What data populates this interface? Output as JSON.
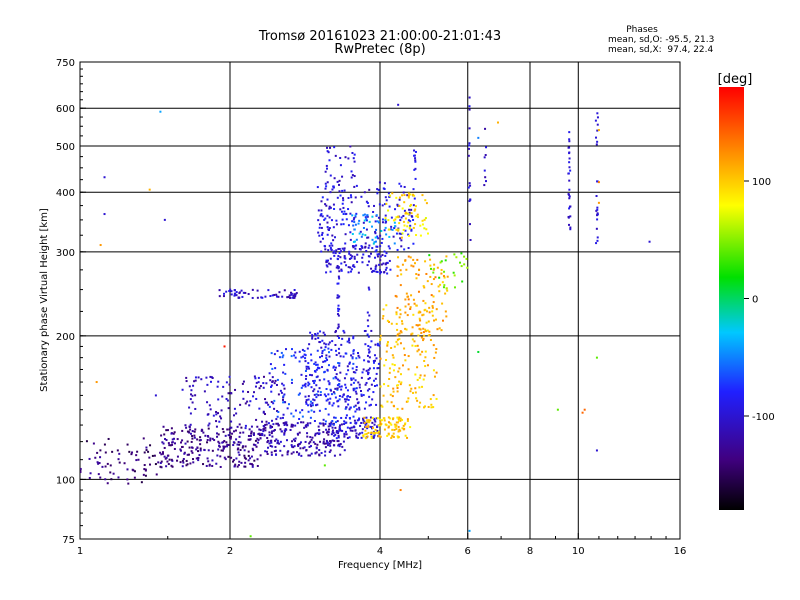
{
  "chart_data": {
    "type": "scatter",
    "title": "Tromsø 20161023 21:00:00-21:01:43",
    "subtitle": "RwPretec (8p)",
    "xlabel": "Frequency [MHz]",
    "ylabel": "Stationary phase Virtual Height [km]",
    "x_scale": "log",
    "y_scale": "log",
    "xlim": [
      1,
      16
    ],
    "ylim": [
      75,
      750
    ],
    "x_ticks": [
      1,
      2,
      4,
      6,
      8,
      10,
      16
    ],
    "x_tick_labels": [
      "1",
      "2",
      "4",
      "6",
      "8",
      "10",
      "16"
    ],
    "x_grid": [
      2,
      4,
      6,
      8,
      10
    ],
    "y_ticks": [
      75,
      100,
      200,
      300,
      400,
      500,
      600,
      750
    ],
    "y_tick_labels": [
      "75",
      "100",
      "200",
      "300",
      "400",
      "500",
      "600",
      "750"
    ],
    "y_grid": [
      100,
      200,
      300,
      400,
      500,
      600
    ],
    "grid": true,
    "phases_box": {
      "title": "Phases",
      "line1": "mean, sd,O: -95.5, 21.3",
      "line2": "mean, sd,X:  97.4, 22.4"
    },
    "colorbar": {
      "label": "[deg]",
      "range": [
        -180,
        180
      ],
      "ticks": [
        100,
        0,
        -100
      ],
      "tick_labels": [
        "100",
        "0",
        "-100"
      ]
    },
    "clusters": [
      {
        "x": [
          1.0,
          1.45
        ],
        "y": [
          98,
          122
        ],
        "phase": -140,
        "n": 70
      },
      {
        "x": [
          1.45,
          2.3
        ],
        "y": [
          106,
          130
        ],
        "phase": -130,
        "n": 260
      },
      {
        "x": [
          2.3,
          3.4
        ],
        "y": [
          112,
          132
        ],
        "phase": -115,
        "n": 220
      },
      {
        "x": [
          3.2,
          4.0
        ],
        "y": [
          122,
          135
        ],
        "phase": -100,
        "n": 90
      },
      {
        "x": [
          3.7,
          4.6
        ],
        "y": [
          122,
          135
        ],
        "phase": 100,
        "n": 100
      },
      {
        "x": [
          1.6,
          2.6
        ],
        "y": [
          128,
          165
        ],
        "phase": -110,
        "n": 130
      },
      {
        "x": [
          2.4,
          3.6
        ],
        "y": [
          130,
          190
        ],
        "phase": -75,
        "n": 160
      },
      {
        "x": [
          2.8,
          4.0
        ],
        "y": [
          140,
          205
        ],
        "phase": -95,
        "n": 220
      },
      {
        "x": [
          4.0,
          5.2
        ],
        "y": [
          140,
          235
        ],
        "phase": 105,
        "n": 150
      },
      {
        "x": [
          4.3,
          5.5
        ],
        "y": [
          200,
          295
        ],
        "phase": 115,
        "n": 110
      },
      {
        "x": [
          3.1,
          4.2
        ],
        "y": [
          270,
          310
        ],
        "phase": -100,
        "n": 120
      },
      {
        "x": [
          3.0,
          4.7
        ],
        "y": [
          300,
          420
        ],
        "phase": -95,
        "n": 200
      },
      {
        "x": [
          3.5,
          4.3
        ],
        "y": [
          310,
          360
        ],
        "phase": -40,
        "n": 45
      },
      {
        "x": [
          4.1,
          5.0
        ],
        "y": [
          320,
          400
        ],
        "phase": 90,
        "n": 70
      },
      {
        "x": [
          3.1,
          3.6
        ],
        "y": [
          400,
          500
        ],
        "phase": -100,
        "n": 35
      },
      {
        "x": [
          1.9,
          2.75
        ],
        "y": [
          240,
          250
        ],
        "phase": -105,
        "n": 60
      },
      {
        "x": [
          5.0,
          6.0
        ],
        "y": [
          250,
          300
        ],
        "phase": 40,
        "n": 25
      }
    ],
    "columns": [
      {
        "x": 6.05,
        "y": [
          290,
          640
        ],
        "phase": -100,
        "n": 16
      },
      {
        "x": 6.5,
        "y": [
          400,
          560
        ],
        "phase": -105,
        "n": 8
      },
      {
        "x": 9.6,
        "y": [
          330,
          540
        ],
        "phase": -100,
        "n": 28
      },
      {
        "x": 10.9,
        "y": [
          300,
          610
        ],
        "phase": -100,
        "n": 22
      },
      {
        "x": 4.7,
        "y": [
          420,
          500
        ],
        "phase": -90,
        "n": 10
      },
      {
        "x": 3.3,
        "y": [
          200,
          280
        ],
        "phase": -95,
        "n": 20
      },
      {
        "x": 3.8,
        "y": [
          160,
          260
        ],
        "phase": -95,
        "n": 18
      }
    ],
    "points": [
      {
        "x": 1.05,
        "y": 103,
        "phase": -120
      },
      {
        "x": 1.08,
        "y": 160,
        "phase": 120
      },
      {
        "x": 1.12,
        "y": 360,
        "phase": -100
      },
      {
        "x": 1.12,
        "y": 430,
        "phase": -100
      },
      {
        "x": 1.1,
        "y": 310,
        "phase": 120
      },
      {
        "x": 1.25,
        "y": 98,
        "phase": -140
      },
      {
        "x": 1.38,
        "y": 405,
        "phase": 110
      },
      {
        "x": 1.45,
        "y": 590,
        "phase": -40
      },
      {
        "x": 1.42,
        "y": 150,
        "phase": -100
      },
      {
        "x": 1.48,
        "y": 350,
        "phase": -100
      },
      {
        "x": 1.95,
        "y": 190,
        "phase": 170
      },
      {
        "x": 2.2,
        "y": 76,
        "phase": 40
      },
      {
        "x": 3.1,
        "y": 107,
        "phase": 40
      },
      {
        "x": 4.35,
        "y": 610,
        "phase": -100
      },
      {
        "x": 4.4,
        "y": 95,
        "phase": 130
      },
      {
        "x": 6.3,
        "y": 520,
        "phase": -50
      },
      {
        "x": 6.05,
        "y": 78,
        "phase": -40
      },
      {
        "x": 6.3,
        "y": 185,
        "phase": 10
      },
      {
        "x": 6.9,
        "y": 560,
        "phase": 110
      },
      {
        "x": 9.1,
        "y": 140,
        "phase": 40
      },
      {
        "x": 10.2,
        "y": 138,
        "phase": 140
      },
      {
        "x": 10.3,
        "y": 140,
        "phase": 140
      },
      {
        "x": 10.9,
        "y": 115,
        "phase": -100
      },
      {
        "x": 10.9,
        "y": 180,
        "phase": 40
      },
      {
        "x": 11.0,
        "y": 540,
        "phase": 110
      },
      {
        "x": 11.0,
        "y": 420,
        "phase": 130
      },
      {
        "x": 11.0,
        "y": 380,
        "phase": 120
      },
      {
        "x": 13.9,
        "y": 315,
        "phase": -100
      }
    ]
  }
}
